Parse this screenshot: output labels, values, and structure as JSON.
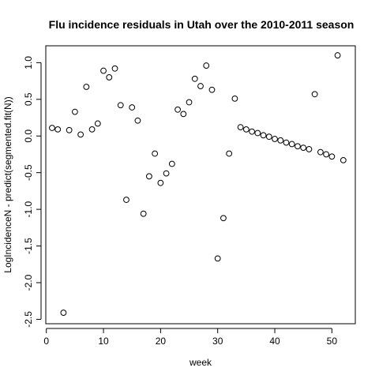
{
  "chart_data": {
    "type": "scatter",
    "title": "Flu incidence residuals in Utah over the 2010-2011 season",
    "xlabel": "week",
    "ylabel": "LogIncidenceN - predict(segmented.fit(N))",
    "xlim": [
      -0.1,
      54.1
    ],
    "ylim": [
      -2.56,
      1.23
    ],
    "xticks": [
      0,
      10,
      20,
      30,
      40,
      50
    ],
    "yticks": [
      -2.5,
      -2.0,
      -1.5,
      -1.0,
      -0.5,
      0.0,
      0.5,
      1.0
    ],
    "xtick_labels": [
      "0",
      "10",
      "20",
      "30",
      "40",
      "50"
    ],
    "ytick_labels": [
      "-2.5",
      "-2.0",
      "-1.5",
      "-1.0",
      "-0.5",
      "0.0",
      "0.5",
      "1.0"
    ],
    "grid": false,
    "marker": "open-circle",
    "x": [
      1,
      2,
      3,
      4,
      5,
      6,
      7,
      8,
      9,
      10,
      11,
      12,
      13,
      14,
      15,
      16,
      17,
      18,
      19,
      20,
      21,
      22,
      23,
      24,
      25,
      26,
      27,
      28,
      29,
      30,
      31,
      32,
      33,
      34,
      35,
      36,
      37,
      38,
      39,
      40,
      41,
      42,
      43,
      44,
      45,
      46,
      47,
      48,
      49,
      50,
      51,
      52
    ],
    "y": [
      0.11,
      0.09,
      -2.41,
      0.08,
      0.33,
      0.02,
      0.67,
      0.09,
      0.17,
      0.89,
      0.8,
      0.92,
      0.42,
      -0.87,
      0.39,
      0.21,
      -1.06,
      -0.55,
      -0.24,
      -0.64,
      -0.51,
      -0.38,
      0.36,
      0.3,
      0.46,
      0.78,
      0.68,
      0.96,
      0.63,
      -1.67,
      -1.12,
      -0.24,
      0.51,
      0.12,
      0.09,
      0.06,
      0.04,
      0.01,
      -0.01,
      -0.04,
      -0.06,
      -0.09,
      -0.11,
      -0.14,
      -0.16,
      -0.18,
      0.57,
      -0.22,
      -0.25,
      -0.28,
      1.1,
      -0.33
    ]
  }
}
